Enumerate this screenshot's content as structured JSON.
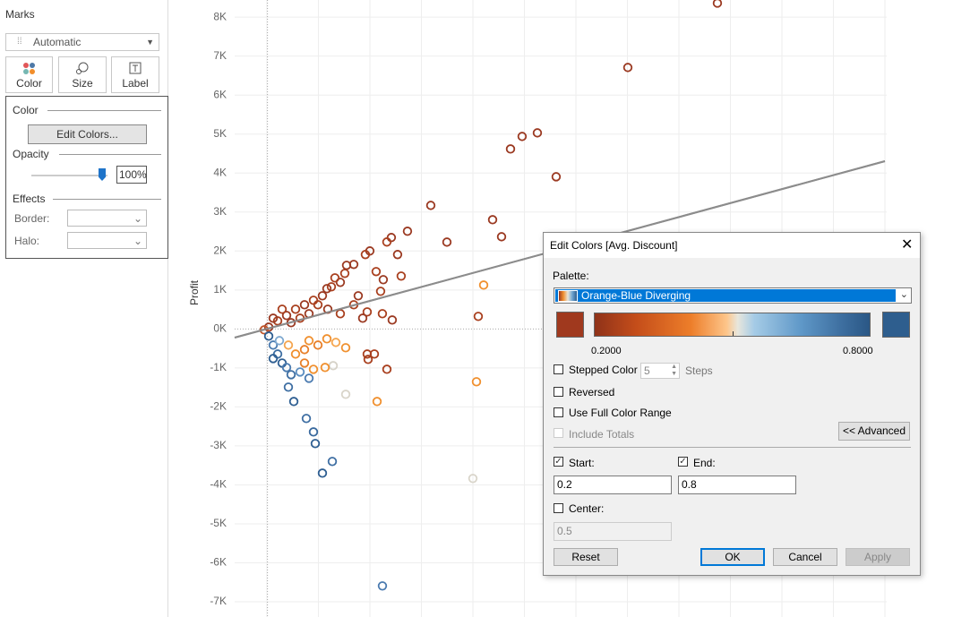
{
  "marks_panel": {
    "title": "Marks",
    "mark_type": "Automatic",
    "buttons": [
      "Color",
      "Size",
      "Label"
    ],
    "color_popup": {
      "color_heading": "Color",
      "edit_button": "Edit Colors...",
      "opacity_heading": "Opacity",
      "opacity_value": "100%",
      "effects_heading": "Effects",
      "border_label": "Border:",
      "halo_label": "Halo:"
    }
  },
  "chart_data": {
    "type": "scatter",
    "y_label": "Profit",
    "xlim": [
      -850,
      16000
    ],
    "ylim": [
      -7390,
      8440
    ],
    "yticks": [
      {
        "value": 8000,
        "label": "8K"
      },
      {
        "value": 7000,
        "label": "7K"
      },
      {
        "value": 6000,
        "label": "6K"
      },
      {
        "value": 5000,
        "label": "5K"
      },
      {
        "value": 4000,
        "label": "4K"
      },
      {
        "value": 3000,
        "label": "3K"
      },
      {
        "value": 2000,
        "label": "2K"
      },
      {
        "value": 1000,
        "label": "1K"
      },
      {
        "value": 0,
        "label": "0K"
      },
      {
        "value": -1000,
        "label": "-1K"
      },
      {
        "value": -2000,
        "label": "-2K"
      },
      {
        "value": -3000,
        "label": "-3K"
      },
      {
        "value": -4000,
        "label": "-4K"
      },
      {
        "value": -5000,
        "label": "-5K"
      },
      {
        "value": -6000,
        "label": "-6K"
      },
      {
        "value": -7000,
        "label": "-7K"
      }
    ],
    "grid": true,
    "x": [
      11659,
      9338,
      6994,
      6599,
      6298,
      7481,
      4232,
      5834,
      6066,
      4650,
      5602,
      5462,
      5416,
      5323,
      2979,
      1424,
      1680,
      1239,
      1192,
      1007,
      682,
      542,
      2028,
      2840,
      1703,
      3095,
      2608,
      2770,
      2027,
      1493,
      3628,
      3372,
      3465,
      3210,
      3094,
      2653,
      2537,
      2236,
      2004,
      1888,
      1656,
      1424,
      1192,
      960,
      728,
      496,
      264,
      32,
      2978,
      3233,
      2584,
      2352,
      2932,
      3001,
      2816,
      2050,
      1748,
      1540,
      1308,
      1076,
      844,
      612,
      2236,
      2468,
      1888,
      1563,
      380,
      148,
      -84,
      2584,
      1076,
      1308,
      1540,
      1772,
      960,
      728,
      1192,
      960,
      542,
      32,
      148,
      264,
      380,
      496,
      612,
      844,
      1076,
      148,
      310
    ],
    "values": [
      8360,
      6708,
      5031,
      4939,
      4618,
      3905,
      3170,
      2803,
      2366,
      2228,
      1126,
      322,
      -1355,
      -3836,
      -6593,
      -3699,
      -3400,
      -2940,
      -2642,
      -2297,
      -1861,
      -1493,
      -1677,
      -1861,
      -942,
      -1034,
      -781,
      -643,
      -482,
      -988,
      2507,
      1909,
      1357,
      2346,
      2231,
      2001,
      1909,
      1656,
      1426,
      1196,
      1081,
      851,
      736,
      621,
      506,
      345,
      207,
      46,
      391,
      230,
      437,
      851,
      966,
      1265,
      1472,
      1633,
      1311,
      1035,
      621,
      391,
      276,
      161,
      621,
      276,
      391,
      506,
      506,
      276,
      -23,
      -644,
      -299,
      -414,
      -253,
      -345,
      -529,
      -644,
      -1035,
      -874,
      -414,
      -184,
      -414,
      -644,
      -874,
      -989,
      -1173,
      -1104,
      -1265,
      -759,
      -299
    ],
    "colors": [
      "#9b3a22",
      "#9b3a22",
      "#9b3a22",
      "#9b3a22",
      "#9b3a22",
      "#9b3a22",
      "#9b3a22",
      "#9b3a22",
      "#9b3a22",
      "#9b3a22",
      "#f0902f",
      "#a9401f",
      "#f0902f",
      "#d9d5ca",
      "#4b7bb0",
      "#2f5f92",
      "#3f6fa3",
      "#2f5f92",
      "#3a6a9e",
      "#3f6fa3",
      "#2f5f92",
      "#3f6fa3",
      "#d9d5ca",
      "#f0902f",
      "#d6d2c8",
      "#a9401f",
      "#a9401f",
      "#a9401f",
      "#f0902f",
      "#f0902f",
      "#9b3a22",
      "#9b3a22",
      "#a9401f",
      "#9b3a22",
      "#a9401f",
      "#9b3a22",
      "#a9401f",
      "#9b3a22",
      "#a9401f",
      "#9b3a22",
      "#a9401f",
      "#9b3a22",
      "#a9401f",
      "#9b3a22",
      "#a9401f",
      "#9b3a22",
      "#a9401f",
      "#9b3a22",
      "#a9401f",
      "#9b3a22",
      "#a9401f",
      "#9b3a22",
      "#a9401f",
      "#9b3a22",
      "#a9401f",
      "#9b3a22",
      "#a9401f",
      "#9b3a22",
      "#a9401f",
      "#9b3a22",
      "#a9401f",
      "#9b3a22",
      "#a9401f",
      "#9b3a22",
      "#a9401f",
      "#9b3a22",
      "#a9401f",
      "#9b3a22",
      "#c0552a",
      "#a9401f",
      "#f0902f",
      "#e8802a",
      "#f0902f",
      "#f5a650",
      "#e8802a",
      "#f0902f",
      "#f0902f",
      "#e8802a",
      "#f5a650",
      "#2f5f92",
      "#4b7bb0",
      "#3f6fa3",
      "#2f5f92",
      "#4b7bb0",
      "#3f6fa3",
      "#5b8dc0",
      "#4b7bb0",
      "#2f5f92",
      "#7fa9d0"
    ]
  },
  "dialog": {
    "title": "Edit Colors [Avg. Discount]",
    "palette_label": "Palette:",
    "palette": "Orange-Blue Diverging",
    "range_start": "0.2000",
    "range_end": "0.8000",
    "stepped_color": "Stepped Color",
    "steps_value": "5",
    "steps_label": "Steps",
    "reversed": "Reversed",
    "full_range": "Use Full Color Range",
    "include_totals": "Include Totals",
    "advanced": "<< Advanced",
    "start_label": "Start:",
    "end_label": "End:",
    "start_value": "0.2",
    "end_value": "0.8",
    "center_label": "Center:",
    "center_value": "0.5",
    "buttons": [
      "Reset",
      "OK",
      "Cancel",
      "Apply"
    ]
  }
}
